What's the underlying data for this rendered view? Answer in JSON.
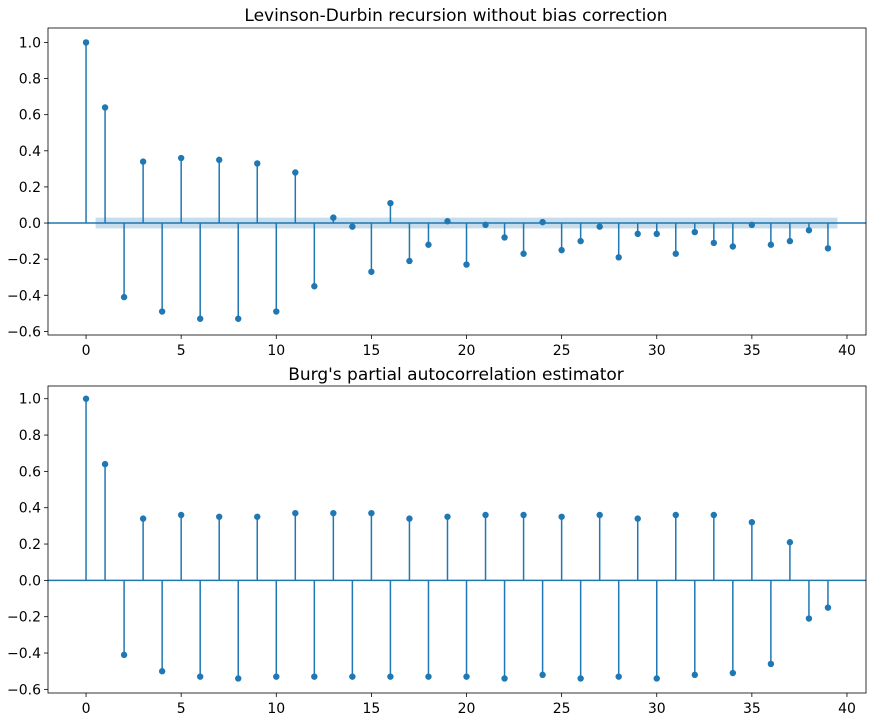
{
  "chart_data": [
    {
      "type": "stem",
      "title": "Levinson-Durbin recursion without bias correction",
      "xlabel": "",
      "ylabel": "",
      "xlim": [
        -2,
        41
      ],
      "ylim": [
        -0.62,
        1.08
      ],
      "xticks": [
        0,
        5,
        10,
        15,
        20,
        25,
        30,
        35,
        40
      ],
      "yticks": [
        -0.6,
        -0.4,
        -0.2,
        0.0,
        0.2,
        0.4,
        0.6,
        0.8,
        1.0
      ],
      "ytick_labels": [
        "−0.6",
        "−0.4",
        "−0.2",
        "0.0",
        "0.2",
        "0.4",
        "0.6",
        "0.8",
        "1.0"
      ],
      "color": "#1f77b4",
      "confidence_band": {
        "x_start": 0.5,
        "x_end": 39.5,
        "lower": -0.03,
        "upper": 0.03,
        "color": "#1f77b4"
      },
      "x": [
        0,
        1,
        2,
        3,
        4,
        5,
        6,
        7,
        8,
        9,
        10,
        11,
        12,
        13,
        14,
        15,
        16,
        17,
        18,
        19,
        20,
        21,
        22,
        23,
        24,
        25,
        26,
        27,
        28,
        29,
        30,
        31,
        32,
        33,
        34,
        35,
        36,
        37,
        38,
        39
      ],
      "values": [
        1.0,
        0.64,
        -0.41,
        0.34,
        -0.49,
        0.36,
        -0.53,
        0.35,
        -0.53,
        0.33,
        -0.49,
        0.28,
        -0.35,
        0.03,
        -0.02,
        -0.27,
        0.11,
        -0.21,
        -0.12,
        0.01,
        -0.23,
        -0.01,
        -0.08,
        -0.17,
        0.005,
        -0.15,
        -0.1,
        -0.02,
        -0.19,
        -0.06,
        -0.06,
        -0.17,
        -0.05,
        -0.11,
        -0.13,
        -0.01,
        -0.12,
        -0.1,
        -0.04,
        -0.14
      ]
    },
    {
      "type": "stem",
      "title": "Burg's partial autocorrelation estimator",
      "xlabel": "",
      "ylabel": "",
      "xlim": [
        -2,
        41
      ],
      "ylim": [
        -0.62,
        1.07
      ],
      "xticks": [
        0,
        5,
        10,
        15,
        20,
        25,
        30,
        35,
        40
      ],
      "yticks": [
        -0.6,
        -0.4,
        -0.2,
        0.0,
        0.2,
        0.4,
        0.6,
        0.8,
        1.0
      ],
      "ytick_labels": [
        "−0.6",
        "−0.4",
        "−0.2",
        "0.0",
        "0.2",
        "0.4",
        "0.6",
        "0.8",
        "1.0"
      ],
      "color": "#1f77b4",
      "x": [
        0,
        1,
        2,
        3,
        4,
        5,
        6,
        7,
        8,
        9,
        10,
        11,
        12,
        13,
        14,
        15,
        16,
        17,
        18,
        19,
        20,
        21,
        22,
        23,
        24,
        25,
        26,
        27,
        28,
        29,
        30,
        31,
        32,
        33,
        34,
        35,
        36,
        37,
        38,
        39
      ],
      "values": [
        1.0,
        0.64,
        -0.41,
        0.34,
        -0.5,
        0.36,
        -0.53,
        0.35,
        -0.54,
        0.35,
        -0.53,
        0.37,
        -0.53,
        0.37,
        -0.53,
        0.37,
        -0.53,
        0.34,
        -0.53,
        0.35,
        -0.53,
        0.36,
        -0.54,
        0.36,
        -0.52,
        0.35,
        -0.54,
        0.36,
        -0.53,
        0.34,
        -0.54,
        0.36,
        -0.52,
        0.36,
        -0.51,
        0.32,
        -0.46,
        0.21,
        -0.21,
        -0.15
      ]
    }
  ]
}
